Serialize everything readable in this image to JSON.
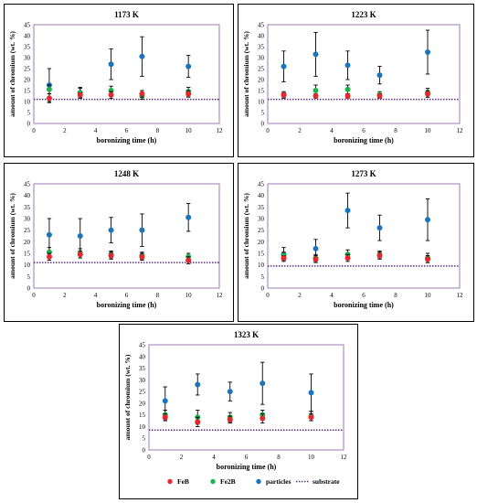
{
  "chart_data": [
    {
      "type": "scatter",
      "title": "1173 K",
      "xlabel": "boronizing time (h)",
      "ylabel": "amount of chromium (wt. %)",
      "xlim": [
        0,
        12
      ],
      "ylim": [
        0,
        45
      ],
      "xticks": [
        0,
        2,
        4,
        6,
        8,
        10,
        12
      ],
      "yticks": [
        0,
        5,
        10,
        15,
        20,
        25,
        30,
        35,
        40,
        45
      ],
      "series": [
        {
          "name": "FeB",
          "color": "#e8262b",
          "points": [
            {
              "x": 1,
              "y": 11.5,
              "err": 2
            },
            {
              "x": 3,
              "y": 13,
              "err": 1
            },
            {
              "x": 5,
              "y": 13,
              "err": 1.5
            },
            {
              "x": 7,
              "y": 13.5,
              "err": 1.5
            },
            {
              "x": 10,
              "y": 13.5,
              "err": 1.5
            }
          ]
        },
        {
          "name": "Fe2B",
          "color": "#1fb14b",
          "points": [
            {
              "x": 1,
              "y": 15.5,
              "err": 2
            },
            {
              "x": 3,
              "y": 14,
              "err": 2
            },
            {
              "x": 5,
              "y": 15,
              "err": 2
            },
            {
              "x": 7,
              "y": 12.5,
              "err": 1.5
            },
            {
              "x": 10,
              "y": 14.5,
              "err": 2
            }
          ]
        },
        {
          "name": "particles",
          "color": "#1b75bc",
          "points": [
            {
              "x": 1,
              "y": 17.5,
              "err": 7.5
            },
            {
              "x": 3,
              "y": 14,
              "err": 2.5
            },
            {
              "x": 5,
              "y": 27,
              "err": 7
            },
            {
              "x": 7,
              "y": 30.5,
              "err": 9
            },
            {
              "x": 10,
              "y": 26,
              "err": 5
            }
          ]
        }
      ],
      "substrate": 11
    },
    {
      "type": "scatter",
      "title": "1223 K",
      "xlabel": "boronizing time (h)",
      "ylabel": "amount of chromium (wt. %)",
      "xlim": [
        0,
        12
      ],
      "ylim": [
        0,
        45
      ],
      "xticks": [
        0,
        2,
        4,
        6,
        8,
        10,
        12
      ],
      "yticks": [
        0,
        5,
        10,
        15,
        20,
        25,
        30,
        35,
        40,
        45
      ],
      "series": [
        {
          "name": "FeB",
          "color": "#e8262b",
          "points": [
            {
              "x": 1,
              "y": 13,
              "err": 1
            },
            {
              "x": 3,
              "y": 12.5,
              "err": 1
            },
            {
              "x": 5,
              "y": 12.5,
              "err": 1
            },
            {
              "x": 7,
              "y": 12.5,
              "err": 1
            },
            {
              "x": 10,
              "y": 13.5,
              "err": 1.5
            }
          ]
        },
        {
          "name": "Fe2B",
          "color": "#1fb14b",
          "points": [
            {
              "x": 1,
              "y": 13,
              "err": 1.5
            },
            {
              "x": 3,
              "y": 15,
              "err": 2.5
            },
            {
              "x": 5,
              "y": 15.5,
              "err": 2
            },
            {
              "x": 7,
              "y": 13,
              "err": 1.5
            },
            {
              "x": 10,
              "y": 14,
              "err": 2
            }
          ]
        },
        {
          "name": "particles",
          "color": "#1b75bc",
          "points": [
            {
              "x": 1,
              "y": 26,
              "err": 7
            },
            {
              "x": 3,
              "y": 31.5,
              "err": 10
            },
            {
              "x": 5,
              "y": 26.5,
              "err": 6.5
            },
            {
              "x": 7,
              "y": 22,
              "err": 4
            },
            {
              "x": 10,
              "y": 32.5,
              "err": 10
            }
          ]
        }
      ],
      "substrate": 11
    },
    {
      "type": "scatter",
      "title": "1248 K",
      "xlabel": "boronizing time (h)",
      "ylabel": "amount of chromium (wt. %)",
      "xlim": [
        0,
        12
      ],
      "ylim": [
        0,
        45
      ],
      "xticks": [
        0,
        2,
        4,
        6,
        8,
        10,
        12
      ],
      "yticks": [
        0,
        5,
        10,
        15,
        20,
        25,
        30,
        35,
        40,
        45
      ],
      "series": [
        {
          "name": "FeB",
          "color": "#e8262b",
          "points": [
            {
              "x": 1,
              "y": 13.5,
              "err": 1.5
            },
            {
              "x": 3,
              "y": 14.5,
              "err": 1.5
            },
            {
              "x": 5,
              "y": 14,
              "err": 1.5
            },
            {
              "x": 7,
              "y": 13.5,
              "err": 1.5
            },
            {
              "x": 10,
              "y": 12,
              "err": 1.5
            }
          ]
        },
        {
          "name": "Fe2B",
          "color": "#1fb14b",
          "points": [
            {
              "x": 1,
              "y": 15.5,
              "err": 2
            },
            {
              "x": 3,
              "y": 15,
              "err": 2
            },
            {
              "x": 5,
              "y": 14.5,
              "err": 1.5
            },
            {
              "x": 7,
              "y": 14,
              "err": 1.5
            },
            {
              "x": 10,
              "y": 13.5,
              "err": 1.5
            }
          ]
        },
        {
          "name": "particles",
          "color": "#1b75bc",
          "points": [
            {
              "x": 1,
              "y": 23,
              "err": 7
            },
            {
              "x": 3,
              "y": 22.5,
              "err": 7.5
            },
            {
              "x": 5,
              "y": 25,
              "err": 5.5
            },
            {
              "x": 7,
              "y": 25,
              "err": 7
            },
            {
              "x": 10,
              "y": 30.5,
              "err": 6
            }
          ]
        }
      ],
      "substrate": 11
    },
    {
      "type": "scatter",
      "title": "1273 K",
      "xlabel": "boronizing time (h)",
      "ylabel": "amount of chromium (wt. %)",
      "xlim": [
        0,
        12
      ],
      "ylim": [
        0,
        45
      ],
      "xticks": [
        0,
        2,
        4,
        6,
        8,
        10,
        12
      ],
      "yticks": [
        0,
        5,
        10,
        15,
        20,
        25,
        30,
        35,
        40,
        45
      ],
      "series": [
        {
          "name": "FeB",
          "color": "#e8262b",
          "points": [
            {
              "x": 1,
              "y": 13,
              "err": 1
            },
            {
              "x": 3,
              "y": 12.5,
              "err": 1.5
            },
            {
              "x": 5,
              "y": 13,
              "err": 1.5
            },
            {
              "x": 7,
              "y": 14,
              "err": 1.5
            },
            {
              "x": 10,
              "y": 12.5,
              "err": 1.5
            }
          ]
        },
        {
          "name": "Fe2B",
          "color": "#1fb14b",
          "points": [
            {
              "x": 1,
              "y": 14,
              "err": 1.5
            },
            {
              "x": 3,
              "y": 13,
              "err": 1.5
            },
            {
              "x": 5,
              "y": 14.5,
              "err": 2
            },
            {
              "x": 7,
              "y": 14.5,
              "err": 1.5
            },
            {
              "x": 10,
              "y": 13,
              "err": 2
            }
          ]
        },
        {
          "name": "particles",
          "color": "#1b75bc",
          "points": [
            {
              "x": 1,
              "y": 14.5,
              "err": 3
            },
            {
              "x": 3,
              "y": 17,
              "err": 4
            },
            {
              "x": 5,
              "y": 33.5,
              "err": 7.5
            },
            {
              "x": 7,
              "y": 26,
              "err": 5.5
            },
            {
              "x": 10,
              "y": 29.5,
              "err": 9
            }
          ]
        }
      ],
      "substrate": 9.5
    },
    {
      "type": "scatter",
      "title": "1323 K",
      "xlabel": "boronizing time (h)",
      "ylabel": "amount of chromium (wt. %)",
      "xlim": [
        0,
        12
      ],
      "ylim": [
        0,
        45
      ],
      "xticks": [
        0,
        2,
        4,
        6,
        8,
        10,
        12
      ],
      "yticks": [
        0,
        5,
        10,
        15,
        20,
        25,
        30,
        35,
        40,
        45
      ],
      "series": [
        {
          "name": "FeB",
          "color": "#e8262b",
          "points": [
            {
              "x": 1,
              "y": 14,
              "err": 1.5
            },
            {
              "x": 3,
              "y": 12,
              "err": 2
            },
            {
              "x": 5,
              "y": 13,
              "err": 1.5
            },
            {
              "x": 7,
              "y": 13.5,
              "err": 2
            },
            {
              "x": 10,
              "y": 14,
              "err": 1.5
            }
          ]
        },
        {
          "name": "Fe2B",
          "color": "#1fb14b",
          "points": [
            {
              "x": 1,
              "y": 15,
              "err": 2
            },
            {
              "x": 3,
              "y": 14,
              "err": 3
            },
            {
              "x": 5,
              "y": 14,
              "err": 2
            },
            {
              "x": 7,
              "y": 15,
              "err": 2
            },
            {
              "x": 10,
              "y": 14.5,
              "err": 2
            }
          ]
        },
        {
          "name": "particles",
          "color": "#1b75bc",
          "points": [
            {
              "x": 1,
              "y": 21,
              "err": 6
            },
            {
              "x": 3,
              "y": 28,
              "err": 4.5
            },
            {
              "x": 5,
              "y": 25,
              "err": 4
            },
            {
              "x": 7,
              "y": 28.5,
              "err": 9
            },
            {
              "x": 10,
              "y": 24.5,
              "err": 8
            }
          ]
        }
      ],
      "substrate": 8.5
    }
  ],
  "legend": {
    "items": [
      {
        "label": "FeB",
        "color": "#e8262b",
        "kind": "dot"
      },
      {
        "label": "Fe2B",
        "color": "#1fb14b",
        "kind": "dot"
      },
      {
        "label": "particles",
        "color": "#1b75bc",
        "kind": "dot"
      },
      {
        "label": "substrate",
        "color": "#5b2d82",
        "kind": "dotted-line"
      }
    ]
  },
  "colors": {
    "plot_border": "#9b7bb4",
    "substrate_line": "#5b2d82"
  }
}
